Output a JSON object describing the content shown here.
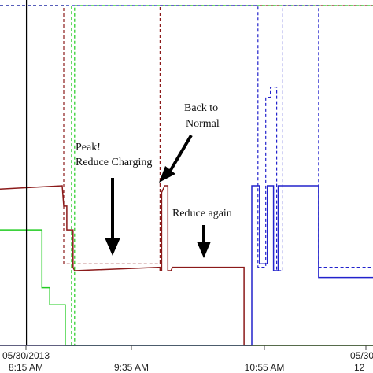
{
  "chart_data": {
    "type": "line",
    "title": "",
    "xlabel": "",
    "ylabel": "",
    "x_tick_labels": [
      {
        "id": "t0",
        "line1": "05/30/2013",
        "line2": "8:15 AM"
      },
      {
        "id": "t1",
        "line1": "",
        "line2": "9:35 AM"
      },
      {
        "id": "t2",
        "line1": "",
        "line2": "10:55 AM"
      },
      {
        "id": "t3",
        "line1": "05/30",
        "line2": "12"
      }
    ],
    "x_range_minutes": [
      0,
      240
    ],
    "y_range": [
      0,
      100
    ],
    "grid": false,
    "legend": "none",
    "series": [
      {
        "color": "#8b1a1a",
        "style": "dashed",
        "points": [
          [
            0,
            100
          ],
          [
            41,
            100
          ],
          [
            41,
            24
          ],
          [
            103,
            24
          ],
          [
            103,
            100
          ],
          [
            144,
            100
          ],
          [
            144,
            100
          ],
          [
            151,
            100
          ],
          [
            151,
            100
          ],
          [
            165,
            100
          ],
          [
            165,
            100
          ],
          [
            240,
            100
          ]
        ]
      },
      {
        "color": "#8b1a1a",
        "style": "solid",
        "points": [
          [
            0,
            46
          ],
          [
            40,
            47
          ],
          [
            41,
            41
          ],
          [
            43,
            41
          ],
          [
            43,
            34
          ],
          [
            47,
            34
          ],
          [
            47,
            23
          ],
          [
            48,
            22
          ],
          [
            103,
            23
          ],
          [
            103,
            22
          ],
          [
            104,
            22
          ],
          [
            104,
            45
          ],
          [
            106,
            47
          ],
          [
            108,
            47
          ],
          [
            108,
            22
          ],
          [
            110,
            22
          ],
          [
            111,
            23
          ],
          [
            157,
            23
          ],
          [
            157,
            0
          ],
          [
            240,
            0
          ]
        ]
      },
      {
        "color": "#22cc22",
        "style": "dashed",
        "points": [
          [
            0,
            100
          ],
          [
            46,
            100
          ],
          [
            46,
            0
          ],
          [
            48,
            0
          ],
          [
            48,
            100
          ],
          [
            103,
            100
          ],
          [
            103,
            100
          ],
          [
            165,
            100
          ],
          [
            165,
            100
          ],
          [
            240,
            100
          ]
        ]
      },
      {
        "color": "#22cc22",
        "style": "solid",
        "points": [
          [
            0,
            34
          ],
          [
            27,
            34
          ],
          [
            27,
            17
          ],
          [
            32,
            17
          ],
          [
            32,
            12
          ],
          [
            42,
            12
          ],
          [
            42,
            0
          ],
          [
            240,
            0
          ]
        ]
      },
      {
        "color": "#2222cc",
        "style": "dashed",
        "points": [
          [
            0,
            100
          ],
          [
            164,
            100
          ],
          [
            164,
            100
          ],
          [
            166,
            100
          ],
          [
            166,
            23
          ],
          [
            171,
            23
          ],
          [
            171,
            73
          ],
          [
            174,
            73
          ],
          [
            174,
            76
          ],
          [
            178,
            76
          ],
          [
            178,
            22
          ],
          [
            182,
            22
          ],
          [
            182,
            100
          ],
          [
            205,
            100
          ],
          [
            205,
            23
          ],
          [
            240,
            23
          ]
        ]
      },
      {
        "color": "#2222cc",
        "style": "solid",
        "points": [
          [
            0,
            0
          ],
          [
            160,
            0
          ],
          [
            162,
            0
          ],
          [
            162,
            47
          ],
          [
            167,
            47
          ],
          [
            167,
            24
          ],
          [
            172,
            24
          ],
          [
            172,
            47
          ],
          [
            176,
            47
          ],
          [
            176,
            22
          ],
          [
            179,
            22
          ],
          [
            179,
            47
          ],
          [
            205,
            47
          ],
          [
            205,
            20
          ],
          [
            240,
            20
          ]
        ]
      }
    ],
    "markers": [
      {
        "x": 17,
        "color": "#000000"
      }
    ],
    "annotations": [
      {
        "id": "a1",
        "lines": [
          "Peak!",
          "Reduce Charging"
        ]
      },
      {
        "id": "a2",
        "lines": [
          "Back to",
          "Normal"
        ]
      },
      {
        "id": "a3",
        "lines": [
          "Reduce again"
        ]
      }
    ]
  }
}
